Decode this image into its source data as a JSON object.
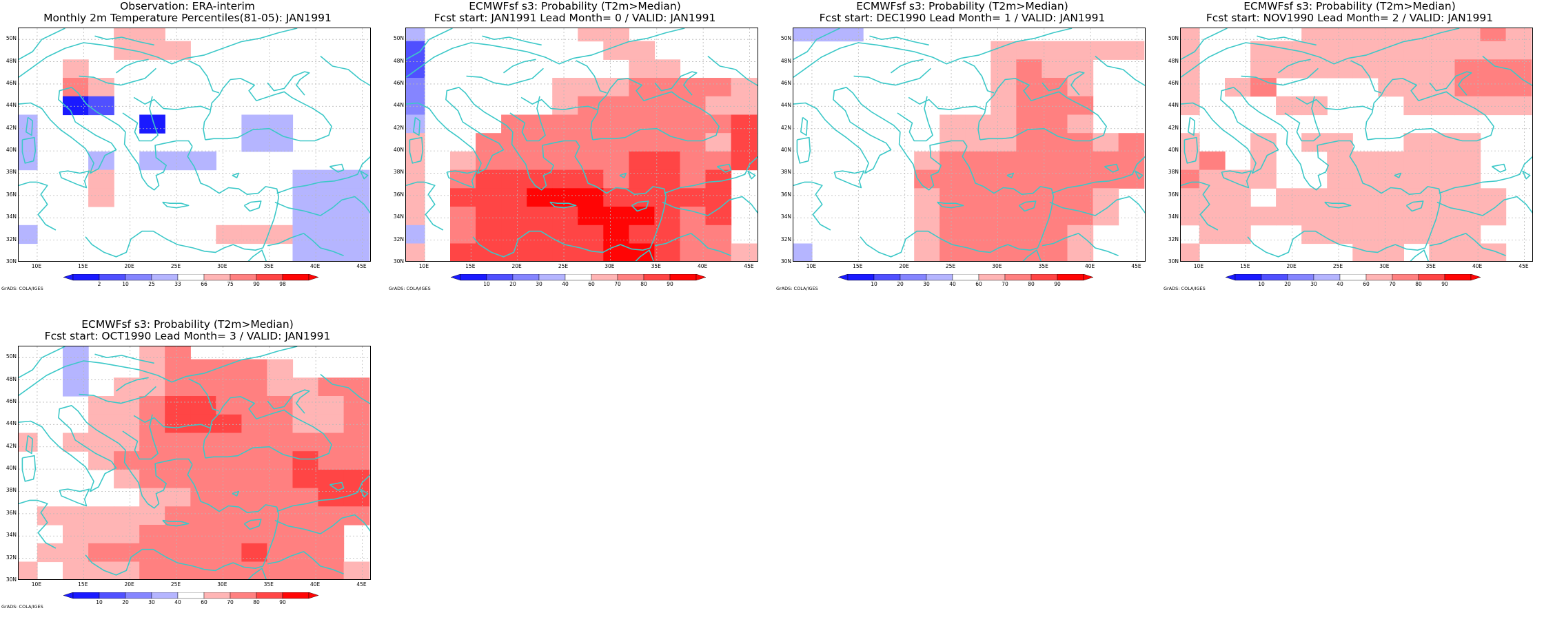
{
  "palettes": {
    "obs": [
      "#1a1aff",
      "#5050ff",
      "#8585ff",
      "#b5b5ff",
      "#ffffff",
      "#ffb5b5",
      "#ff8080",
      "#ff4545",
      "#ff0505"
    ],
    "prob": [
      "#1a1aff",
      "#5050ff",
      "#8585ff",
      "#b5b5ff",
      "#ffffff",
      "#ffb5b5",
      "#ff8080",
      "#ff4545",
      "#ff0505"
    ]
  },
  "colorbar_obs": [
    "2",
    "10",
    "25",
    "33",
    "66",
    "75",
    "90",
    "98"
  ],
  "colorbar_prob": [
    "10",
    "20",
    "30",
    "40",
    "60",
    "70",
    "80",
    "90"
  ],
  "lat_labels": [
    "50N",
    "48N",
    "46N",
    "44N",
    "42N",
    "40N",
    "38N",
    "36N",
    "34N",
    "32N",
    "30N"
  ],
  "lon_labels": [
    "10E",
    "15E",
    "20E",
    "25E",
    "30E",
    "35E",
    "40E",
    "45E"
  ],
  "credit": "GrADS: COLA/IGES",
  "coast_color": "#3cc8c8",
  "panels": [
    {
      "title1": "Observation: ERA-interim",
      "title2": "Monthly 2m Temperature Percentiles(81-05): JAN1991",
      "palette": "obs",
      "cb": "colorbar_obs",
      "grid": [
        "44445544444444",
        "44445554444444",
        "44544444444444",
        "44654444444444",
        "44014444444444",
        "34444044433444",
        "34444444433444",
        "34434333444444",
        "44454444444333",
        "44454444444333",
        "44444444444333",
        "34444444555333",
        "44444444444333"
      ]
    },
    {
      "title1": "ECMWFsf s3: Probability (T2m>Median)",
      "title2": "Fcst start: JAN1991  Lead Month= 0 / VALID: JAN1991",
      "palette": "prob",
      "cb": "colorbar_prob",
      "grid": [
        "34444445544444",
        "14444444554444",
        "14444444455444",
        "24444455566665",
        "24444456666655",
        "34446666666667",
        "54466666666657",
        "54566666677667",
        "54677777677674",
        "54777888777774",
        "54677778887674",
        "34677777877664",
        "54777777887665"
      ]
    },
    {
      "title1": "ECMWFsf s3: Probability (T2m>Median)",
      "title2": "Fcst start: DEC1990  Lead Month= 1 / VALID: JAN1991",
      "palette": "prob",
      "cb": "colorbar_prob",
      "grid": [
        "33344444444444",
        "44444444555555",
        "44444444565544",
        "44444444566544",
        "44444444566644",
        "44444455566544",
        "44444455566656",
        "44444566666666",
        "44444666666666",
        "44444566666654",
        "44444566666654",
        "44444566666544",
        "34444566666544"
      ]
    },
    {
      "title1": "ECMWFsf s3: Probability (T2m>Median)",
      "title2": "Fcst start: NOV1990  Lead Month= 2 / VALID: JAN1991",
      "palette": "prob",
      "cb": "colorbar_prob",
      "grid": [
        "54444555555565",
        "54455555555555",
        "54455555555666",
        "54564444555666",
        "54445544455555",
        "44444444444444",
        "54454554455544",
        "56454455555544",
        "65554455555544",
        "55545555555554",
        "55555555555554",
        "45544555555544",
        "54444445545554"
      ]
    },
    {
      "title1": "ECMWFsf s3: Probability (T2m>Median)",
      "title2": "Fcst start: OCT1990  Lead Month= 3 / VALID: JAN1991",
      "palette": "prob",
      "cb": "colorbar_prob",
      "grid": [
        "44344564444444",
        "44344566665444",
        "44345566665566",
        "44455677666556",
        "44455677766556",
        "54555666666666",
        "44456666666766",
        "44445666666777",
        "44444556666677",
        "45555566666666",
        "44555666666664",
        "45566666676664",
        "54555666666665"
      ]
    }
  ]
}
